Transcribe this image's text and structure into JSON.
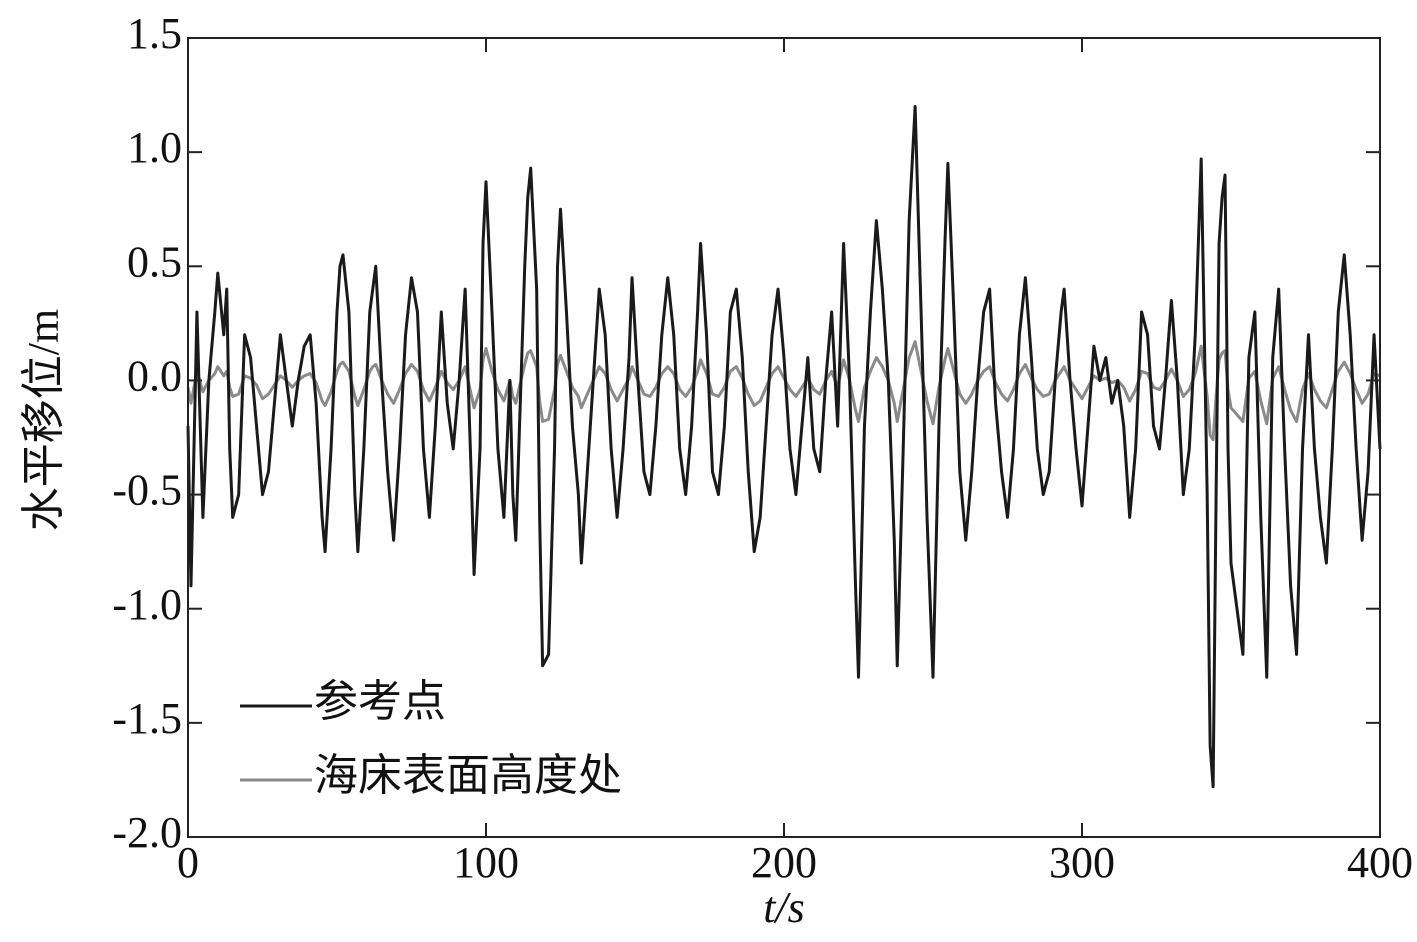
{
  "chart_data": {
    "type": "line",
    "xlabel": "t/s",
    "ylabel": "水平移位/m",
    "xlim": [
      0,
      400
    ],
    "ylim": [
      -2.0,
      1.5
    ],
    "xticks": [
      0,
      100,
      200,
      300,
      400
    ],
    "yticks": [
      {
        "value": 1.5,
        "label": "1.5"
      },
      {
        "value": 1.0,
        "label": "1.0"
      },
      {
        "value": 0.5,
        "label": "0.5"
      },
      {
        "value": 0.0,
        "label": "0.0"
      },
      {
        "value": -0.5,
        "label": "-0.5"
      },
      {
        "value": -1.0,
        "label": "-1.0"
      },
      {
        "value": -1.5,
        "label": "-1.5"
      },
      {
        "value": -2.0,
        "label": "-2.0"
      }
    ],
    "grid": false,
    "legend": "lower left",
    "x": [
      0,
      1,
      3,
      5,
      7,
      9,
      10,
      12,
      13,
      14,
      15,
      17,
      19,
      21,
      23,
      25,
      27,
      29,
      31,
      33,
      35,
      37,
      39,
      41,
      43,
      45,
      46,
      48,
      50,
      51,
      52,
      54,
      56,
      57,
      59,
      61,
      62,
      63,
      65,
      67,
      69,
      71,
      73,
      75,
      77,
      79,
      81,
      83,
      85,
      87,
      89,
      91,
      93,
      95,
      96,
      98,
      99,
      100,
      102,
      104,
      106,
      108,
      109,
      110,
      111,
      113,
      114,
      115,
      117,
      118,
      119,
      121,
      123,
      124,
      125,
      127,
      129,
      131,
      132,
      134,
      136,
      138,
      140,
      142,
      144,
      146,
      148,
      149,
      151,
      153,
      155,
      157,
      159,
      161,
      163,
      165,
      167,
      169,
      171,
      172,
      174,
      176,
      178,
      180,
      182,
      184,
      186,
      188,
      190,
      192,
      194,
      196,
      198,
      200,
      202,
      204,
      206,
      208,
      210,
      212,
      214,
      216,
      218,
      220,
      222,
      224,
      225,
      227,
      229,
      231,
      233,
      235,
      237,
      238,
      240,
      242,
      244,
      246,
      248,
      250,
      252,
      254,
      255,
      257,
      259,
      261,
      263,
      265,
      267,
      269,
      271,
      273,
      275,
      277,
      279,
      281,
      283,
      285,
      287,
      289,
      291,
      293,
      294,
      296,
      298,
      300,
      302,
      304,
      306,
      308,
      310,
      312,
      314,
      316,
      318,
      320,
      322,
      324,
      326,
      328,
      330,
      332,
      334,
      336,
      338,
      340,
      342,
      343,
      344,
      345,
      346,
      347,
      348,
      349,
      350,
      352,
      354,
      356,
      358,
      360,
      362,
      364,
      366,
      368,
      370,
      372,
      374,
      376,
      378,
      380,
      382,
      384,
      386,
      388,
      390,
      392,
      394,
      396,
      398,
      400
    ],
    "series": [
      {
        "name": "参考点",
        "color": "#1a1a1a",
        "values": [
          -0.2,
          -0.9,
          0.3,
          -0.6,
          0.0,
          0.3,
          0.47,
          0.2,
          0.4,
          -0.3,
          -0.6,
          -0.5,
          0.2,
          0.1,
          -0.2,
          -0.5,
          -0.4,
          -0.1,
          0.2,
          0.0,
          -0.2,
          0.0,
          0.15,
          0.2,
          -0.1,
          -0.6,
          -0.75,
          -0.3,
          0.3,
          0.5,
          0.55,
          0.3,
          -0.5,
          -0.75,
          -0.3,
          0.3,
          0.4,
          0.5,
          0.0,
          -0.4,
          -0.7,
          -0.3,
          0.2,
          0.45,
          0.3,
          -0.3,
          -0.6,
          -0.2,
          0.3,
          -0.1,
          -0.3,
          0.0,
          0.4,
          -0.4,
          -0.85,
          -0.3,
          0.6,
          0.87,
          0.3,
          -0.3,
          -0.6,
          0.0,
          -0.5,
          -0.7,
          -0.3,
          0.5,
          0.8,
          0.93,
          0.4,
          -0.6,
          -1.25,
          -1.2,
          -0.3,
          0.5,
          0.75,
          0.3,
          -0.2,
          -0.5,
          -0.8,
          -0.4,
          0.0,
          0.4,
          0.2,
          -0.3,
          -0.6,
          -0.3,
          0.1,
          0.45,
          0.0,
          -0.4,
          -0.5,
          -0.2,
          0.2,
          0.45,
          0.2,
          -0.3,
          -0.5,
          -0.2,
          0.3,
          0.6,
          0.2,
          -0.4,
          -0.5,
          -0.2,
          0.3,
          0.4,
          0.1,
          -0.4,
          -0.75,
          -0.6,
          -0.2,
          0.2,
          0.4,
          0.1,
          -0.3,
          -0.5,
          -0.2,
          0.1,
          -0.3,
          -0.4,
          0.0,
          0.3,
          -0.2,
          0.6,
          0.0,
          -0.9,
          -1.3,
          -0.2,
          0.3,
          0.7,
          0.4,
          0.0,
          -0.7,
          -1.25,
          -0.3,
          0.7,
          1.2,
          0.3,
          -0.6,
          -1.3,
          -0.2,
          0.6,
          0.95,
          0.3,
          -0.4,
          -0.7,
          -0.4,
          0.0,
          0.3,
          0.4,
          -0.1,
          -0.4,
          -0.6,
          -0.3,
          0.2,
          0.45,
          0.1,
          -0.3,
          -0.5,
          -0.4,
          0.0,
          0.3,
          0.4,
          0.0,
          -0.3,
          -0.55,
          -0.2,
          0.15,
          0.0,
          0.1,
          -0.1,
          0.0,
          -0.2,
          -0.6,
          -0.3,
          0.3,
          0.2,
          -0.2,
          -0.3,
          0.0,
          0.35,
          0.0,
          -0.5,
          -0.3,
          0.2,
          0.97,
          -0.5,
          -1.6,
          -1.78,
          -0.5,
          0.6,
          0.8,
          0.9,
          -0.3,
          -0.8,
          -1.0,
          -1.2,
          0.1,
          0.3,
          -0.6,
          -1.3,
          0.1,
          0.4,
          -0.3,
          -0.9,
          -1.2,
          -0.3,
          0.2,
          -0.3,
          -0.6,
          -0.8,
          -0.3,
          0.3,
          0.55,
          0.2,
          -0.3,
          -0.7,
          -0.4,
          0.2,
          -0.3
        ]
      },
      {
        "name": "海床表面高度处",
        "color": "#8a8a8a",
        "values": [
          -0.03,
          -0.1,
          0.04,
          -0.05,
          0.0,
          0.03,
          0.06,
          0.02,
          0.04,
          -0.03,
          -0.07,
          -0.06,
          0.02,
          0.01,
          -0.02,
          -0.08,
          -0.06,
          -0.02,
          0.02,
          0.0,
          -0.03,
          0.0,
          0.02,
          0.03,
          -0.01,
          -0.09,
          -0.11,
          -0.05,
          0.04,
          0.07,
          0.08,
          0.04,
          -0.07,
          -0.11,
          -0.04,
          0.04,
          0.06,
          0.07,
          0.0,
          -0.06,
          -0.1,
          -0.04,
          0.03,
          0.07,
          0.04,
          -0.04,
          -0.09,
          -0.03,
          0.04,
          -0.01,
          -0.04,
          0.0,
          0.06,
          -0.06,
          -0.12,
          -0.04,
          0.09,
          0.14,
          0.04,
          -0.04,
          -0.09,
          0.0,
          -0.07,
          -0.1,
          -0.04,
          0.07,
          0.12,
          0.13,
          0.06,
          -0.09,
          -0.18,
          -0.17,
          -0.04,
          0.07,
          0.11,
          0.04,
          -0.03,
          -0.07,
          -0.12,
          -0.06,
          0.0,
          0.06,
          0.03,
          -0.04,
          -0.09,
          -0.04,
          0.01,
          0.06,
          0.0,
          -0.06,
          -0.07,
          -0.03,
          0.03,
          0.06,
          0.03,
          -0.04,
          -0.07,
          -0.03,
          0.04,
          0.09,
          0.03,
          -0.06,
          -0.07,
          -0.03,
          0.04,
          0.06,
          0.01,
          -0.06,
          -0.11,
          -0.09,
          -0.03,
          0.03,
          0.06,
          0.01,
          -0.04,
          -0.07,
          -0.03,
          0.01,
          -0.04,
          -0.06,
          0.0,
          0.04,
          -0.03,
          0.09,
          0.0,
          -0.13,
          -0.18,
          -0.03,
          0.04,
          0.1,
          0.06,
          0.0,
          -0.1,
          -0.18,
          -0.04,
          0.1,
          0.17,
          0.04,
          -0.09,
          -0.19,
          -0.03,
          0.09,
          0.14,
          0.04,
          -0.06,
          -0.1,
          -0.06,
          0.0,
          0.04,
          0.06,
          -0.01,
          -0.06,
          -0.09,
          -0.04,
          0.03,
          0.07,
          0.01,
          -0.04,
          -0.07,
          -0.06,
          0.0,
          0.04,
          0.06,
          0.0,
          -0.04,
          -0.08,
          -0.03,
          0.02,
          0.0,
          0.01,
          -0.01,
          0.0,
          -0.03,
          -0.09,
          -0.04,
          0.04,
          0.03,
          -0.03,
          -0.04,
          0.0,
          0.05,
          0.0,
          -0.07,
          -0.04,
          0.03,
          0.15,
          -0.07,
          -0.24,
          -0.26,
          -0.07,
          0.09,
          0.12,
          0.13,
          -0.04,
          -0.12,
          -0.15,
          -0.18,
          0.01,
          0.04,
          -0.09,
          -0.19,
          0.01,
          0.06,
          -0.04,
          -0.13,
          -0.18,
          -0.04,
          0.03,
          -0.04,
          -0.09,
          -0.12,
          -0.04,
          0.04,
          0.08,
          0.03,
          -0.04,
          -0.1,
          -0.06,
          0.03,
          0.02
        ]
      }
    ]
  }
}
